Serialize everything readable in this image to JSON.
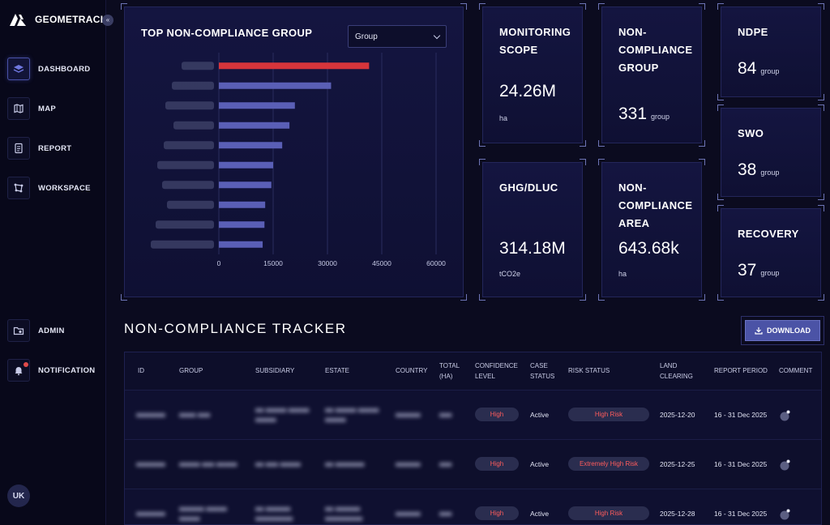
{
  "app": {
    "brand": "GEOMETRACK",
    "collapse_icon": "chevrons-left-icon"
  },
  "sidebar": {
    "items": [
      {
        "label": "DASHBOARD",
        "icon": "layers-icon",
        "active": true
      },
      {
        "label": "MAP",
        "icon": "map-icon",
        "active": false
      },
      {
        "label": "REPORT",
        "icon": "report-icon",
        "active": false
      },
      {
        "label": "WORKSPACE",
        "icon": "workspace-icon",
        "active": false
      },
      {
        "label": "ADMIN",
        "icon": "admin-folder-icon",
        "active": false
      },
      {
        "label": "NOTIFICATION",
        "icon": "bell-icon",
        "active": false
      }
    ],
    "user_initials": "UK"
  },
  "chart_panel": {
    "title": "TOP NON-COMPLIANCE GROUP",
    "select_value": "Group"
  },
  "chart_data": {
    "type": "bar",
    "orientation": "horizontal",
    "categories": [
      "",
      "",
      "",
      "",
      "",
      "",
      "",
      "",
      "",
      ""
    ],
    "values": [
      41500,
      31000,
      21000,
      19500,
      17500,
      15000,
      14500,
      12800,
      12600,
      12100
    ],
    "highlight_color": "#d6353b",
    "bar_color": "#5a5fb6",
    "xlim": [
      0,
      60000
    ],
    "xticks": [
      "0",
      "15000",
      "30000",
      "45000",
      "60000"
    ],
    "grid": true
  },
  "stats": {
    "monitoring_scope": {
      "label": "MONITORING SCOPE",
      "value": "24.26M",
      "unit": "ha"
    },
    "non_compliance_group": {
      "label": "NON-COMPLIANCE GROUP",
      "value": "331",
      "unit": "group"
    },
    "ndpe": {
      "label": "NDPE",
      "value": "84",
      "unit": "group"
    },
    "ghg_dluc": {
      "label": "GHG/DLUC",
      "value": "314.18M",
      "unit": "tCO2e"
    },
    "non_compliance_area": {
      "label": "NON-COMPLIANCE AREA",
      "value": "643.68k",
      "unit": "ha"
    },
    "swo": {
      "label": "SWO",
      "value": "38",
      "unit": "group"
    },
    "recovery": {
      "label": "RECOVERY",
      "value": "37",
      "unit": "group"
    }
  },
  "tracker": {
    "title": "NON-COMPLIANCE TRACKER",
    "download_label": "DOWNLOAD",
    "columns": [
      "ID",
      "GROUP",
      "SUBSIDIARY",
      "ESTATE",
      "COUNTRY",
      "TOTAL (HA)",
      "CONFIDENCE LEVEL",
      "CASE STATUS",
      "RISK STATUS",
      "LAND CLEARING",
      "REPORT PERIOD",
      "COMMENT"
    ],
    "rows": [
      {
        "confidence": "High",
        "case_status": "Active",
        "risk_status": "High Risk",
        "land_clearing": "2025-12-20",
        "report_period": "16 - 31 Dec 2025"
      },
      {
        "confidence": "High",
        "case_status": "Active",
        "risk_status": "Extremely High Risk",
        "land_clearing": "2025-12-25",
        "report_period": "16 - 31 Dec 2025"
      },
      {
        "confidence": "High",
        "case_status": "Active",
        "risk_status": "High Risk",
        "land_clearing": "2025-12-28",
        "report_period": "16 - 31 Dec 2025"
      }
    ]
  }
}
